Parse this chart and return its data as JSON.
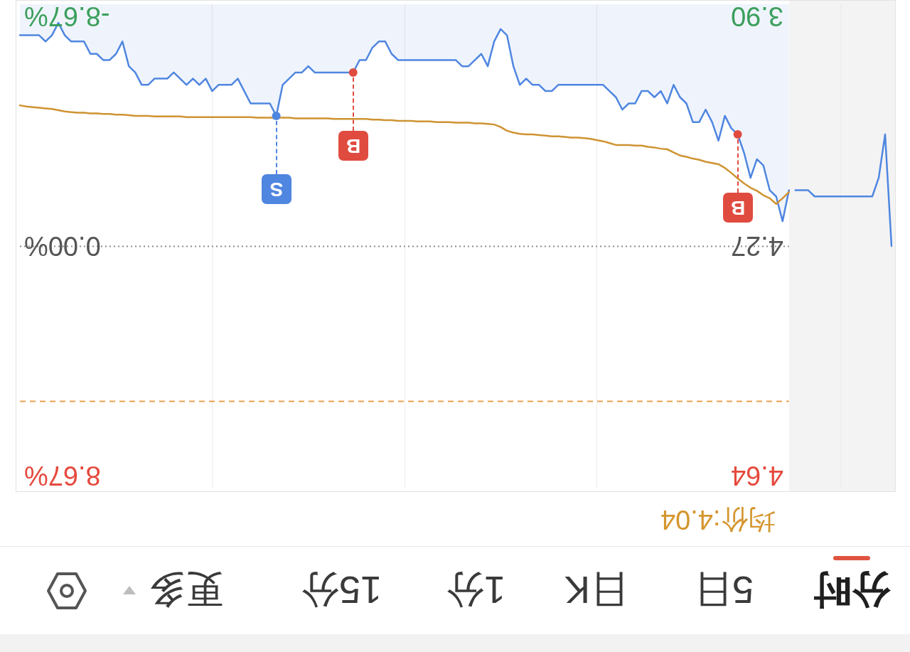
{
  "chart_data": {
    "type": "line",
    "categories": [
      null,
      null,
      null,
      null,
      null,
      null,
      null,
      null,
      null,
      null,
      null,
      null,
      null,
      null,
      null,
      null,
      null,
      null,
      null,
      null,
      null,
      null,
      null,
      null,
      null,
      null,
      null,
      null,
      null,
      null,
      null,
      null,
      null,
      null,
      null,
      null,
      null,
      null,
      null,
      null,
      null,
      null,
      null,
      null,
      null,
      null,
      null,
      null,
      null,
      null,
      null,
      null,
      null,
      null,
      null,
      null,
      null,
      null,
      null,
      null,
      null,
      null,
      null,
      null,
      null,
      null,
      null,
      null,
      null,
      null,
      null,
      null,
      null,
      null,
      null,
      null,
      null,
      null,
      null,
      null,
      null,
      null,
      null,
      null,
      null,
      null,
      null,
      null,
      null,
      null,
      null,
      null,
      null,
      null,
      null,
      null,
      null,
      null,
      null,
      null,
      null,
      null,
      null,
      null,
      null,
      null,
      null,
      null,
      null,
      null,
      null,
      null,
      null,
      null,
      null,
      null,
      null,
      null,
      null,
      null,
      null,
      null,
      null,
      null,
      null,
      null,
      null,
      null,
      null,
      null,
      null,
      null,
      null,
      null,
      null,
      null,
      null
    ],
    "ylim": [
      4.66,
      3.88
    ],
    "yticks": [
      {
        "value": 3.9,
        "label": "3.90"
      },
      4.27,
      4.64
    ],
    "y2lim": [
      9.14,
      -9.14
    ],
    "y2ticks": [
      {
        "value": -8.67,
        "label": "-8.67%"
      },
      {
        "value": 0,
        "label": "0.00%"
      },
      {
        "value": 8.67,
        "label": "8.67%"
      }
    ],
    "grid": "x",
    "tick_labels": "y",
    "ref_lines": [
      {
        "axis": "y",
        "value": 4.27,
        "color": "#8c8c8c",
        "line_style": "dotted"
      },
      {
        "axis": "y",
        "value": 4.52,
        "color": "#e9a04f",
        "line_style": "dashed"
      }
    ],
    "annotations": [
      "分时",
      "5日",
      "日K",
      "1分",
      "15分",
      "更多",
      "均价:4.04"
    ],
    "series": [
      {
        "type": "area",
        "color": "#4f86e0",
        "values": [
          3.93,
          3.93,
          3.93,
          3.93,
          3.94,
          3.93,
          3.91,
          3.93,
          3.94,
          3.94,
          3.94,
          3.96,
          3.96,
          3.97,
          3.97,
          3.96,
          3.94,
          3.98,
          3.99,
          4.01,
          4.01,
          4.0,
          4.0,
          4.0,
          3.99,
          4.0,
          4.01,
          4.0,
          4.01,
          4.0,
          4.02,
          4.01,
          4.01,
          4.01,
          4.0,
          4.02,
          4.04,
          4.04,
          4.04,
          4.04,
          4.06,
          4.01,
          4.0,
          3.99,
          3.99,
          3.98,
          3.99,
          3.99,
          3.99,
          3.99,
          3.99,
          3.99,
          3.99,
          3.97,
          3.97,
          3.95,
          3.94,
          3.94,
          3.96,
          3.97,
          3.97,
          3.97,
          3.97,
          3.97,
          3.97,
          3.97,
          3.97,
          3.97,
          3.97,
          3.98,
          3.98,
          3.97,
          3.96,
          3.98,
          3.94,
          3.92,
          3.93,
          3.98,
          4.01,
          4.0,
          4.01,
          4.01,
          4.02,
          4.02,
          4.01,
          4.01,
          4.01,
          4.01,
          4.01,
          4.01,
          4.01,
          4.01,
          4.02,
          4.03,
          4.05,
          4.04,
          4.04,
          4.02,
          4.02,
          4.03,
          4.02,
          4.04,
          4.01,
          4.03,
          4.04,
          4.07,
          4.07,
          4.05,
          4.07,
          4.1,
          4.06,
          4.08,
          4.09,
          4.12,
          4.16,
          4.13,
          4.14,
          4.18,
          4.19,
          4.23,
          4.18,
          null,
          null,
          null,
          null,
          null,
          null,
          null,
          null,
          null,
          null,
          null,
          null,
          null,
          null,
          null,
          null
        ]
      },
      {
        "type": "line",
        "color": "#4f86e0",
        "values": [
          null,
          null,
          null,
          null,
          null,
          null,
          null,
          null,
          null,
          null,
          null,
          null,
          null,
          null,
          null,
          null,
          null,
          null,
          null,
          null,
          null,
          null,
          null,
          null,
          null,
          null,
          null,
          null,
          null,
          null,
          null,
          null,
          null,
          null,
          null,
          null,
          null,
          null,
          null,
          null,
          null,
          null,
          null,
          null,
          null,
          null,
          null,
          null,
          null,
          null,
          null,
          null,
          null,
          null,
          null,
          null,
          null,
          null,
          null,
          null,
          null,
          null,
          null,
          null,
          null,
          null,
          null,
          null,
          null,
          null,
          null,
          null,
          null,
          null,
          null,
          null,
          null,
          null,
          null,
          null,
          null,
          null,
          null,
          null,
          null,
          null,
          null,
          null,
          null,
          null,
          null,
          null,
          null,
          null,
          null,
          null,
          null,
          null,
          null,
          null,
          null,
          null,
          null,
          null,
          null,
          null,
          null,
          null,
          null,
          null,
          null,
          null,
          null,
          null,
          null,
          null,
          null,
          null,
          null,
          null,
          null,
          4.18,
          4.18,
          4.18,
          4.19,
          4.19,
          4.19,
          4.19,
          4.19,
          4.19,
          4.19,
          4.19,
          4.19,
          4.19,
          4.16,
          4.09,
          4.27
        ]
      },
      {
        "type": "line",
        "color": "#cf9332",
        "values": [
          4.043,
          4.045,
          4.046,
          4.047,
          4.048,
          4.049,
          4.051,
          4.053,
          4.054,
          4.055,
          4.055,
          4.056,
          4.056,
          4.057,
          4.057,
          4.058,
          4.058,
          4.059,
          4.06,
          4.06,
          4.06,
          4.061,
          4.061,
          4.061,
          4.061,
          4.061,
          4.062,
          4.062,
          4.062,
          4.062,
          4.062,
          4.062,
          4.062,
          4.062,
          4.062,
          4.062,
          4.062,
          4.063,
          4.063,
          4.063,
          4.063,
          4.063,
          4.063,
          4.064,
          4.064,
          4.064,
          4.064,
          4.064,
          4.064,
          4.065,
          4.065,
          4.065,
          4.065,
          4.065,
          4.065,
          4.066,
          4.066,
          4.067,
          4.067,
          4.068,
          4.068,
          4.068,
          4.069,
          4.069,
          4.069,
          4.07,
          4.07,
          4.07,
          4.071,
          4.071,
          4.071,
          4.072,
          4.072,
          4.073,
          4.074,
          4.078,
          4.084,
          4.087,
          4.089,
          4.09,
          4.09,
          4.091,
          4.092,
          4.093,
          4.093,
          4.094,
          4.095,
          4.095,
          4.096,
          4.097,
          4.099,
          4.101,
          4.104,
          4.107,
          4.107,
          4.107,
          4.108,
          4.108,
          4.11,
          4.111,
          4.113,
          4.114,
          4.119,
          4.124,
          4.126,
          4.129,
          4.131,
          4.134,
          4.136,
          4.138,
          4.144,
          4.152,
          4.161,
          4.169,
          4.176,
          4.181,
          4.188,
          4.193,
          4.202,
          4.193,
          4.183,
          null,
          null,
          null,
          null,
          null,
          null,
          null,
          null,
          null,
          null,
          null,
          null,
          null,
          null,
          null,
          null
        ]
      },
      {
        "type": "scatter",
        "color": "#e04b3f",
        "marker": "circle",
        "values": [
          null,
          null,
          null,
          null,
          null,
          null,
          null,
          null,
          null,
          null,
          null,
          null,
          null,
          null,
          null,
          null,
          null,
          null,
          null,
          null,
          null,
          null,
          null,
          null,
          null,
          null,
          null,
          null,
          null,
          null,
          null,
          null,
          null,
          null,
          null,
          null,
          null,
          null,
          null,
          null,
          null,
          null,
          null,
          null,
          null,
          null,
          null,
          null,
          null,
          null,
          null,
          null,
          3.99,
          null,
          null,
          null,
          null,
          null,
          null,
          null,
          null,
          null,
          null,
          null,
          null,
          null,
          null,
          null,
          null,
          null,
          null,
          null,
          null,
          null,
          null,
          null,
          null,
          null,
          null,
          null,
          null,
          null,
          null,
          null,
          null,
          null,
          null,
          null,
          null,
          null,
          null,
          null,
          null,
          null,
          null,
          null,
          null,
          null,
          null,
          null,
          null,
          null,
          null,
          null,
          null,
          null,
          null,
          null,
          null,
          null,
          null,
          null,
          4.09,
          null,
          null,
          null,
          null,
          null,
          null,
          null,
          null,
          null,
          null,
          null,
          null,
          null,
          null,
          null,
          null,
          null,
          null,
          null,
          null,
          null,
          null,
          null,
          null
        ],
        "value_labels": [
          null,
          null,
          null,
          null,
          null,
          null,
          null,
          null,
          null,
          null,
          null,
          null,
          null,
          null,
          null,
          null,
          null,
          null,
          null,
          null,
          null,
          null,
          null,
          null,
          null,
          null,
          null,
          null,
          null,
          null,
          null,
          null,
          null,
          null,
          null,
          null,
          null,
          null,
          null,
          null,
          null,
          null,
          null,
          null,
          null,
          null,
          null,
          null,
          null,
          null,
          null,
          null,
          "B",
          null,
          null,
          null,
          null,
          null,
          null,
          null,
          null,
          null,
          null,
          null,
          null,
          null,
          null,
          null,
          null,
          null,
          null,
          null,
          null,
          null,
          null,
          null,
          null,
          null,
          null,
          null,
          null,
          null,
          null,
          null,
          null,
          null,
          null,
          null,
          null,
          null,
          null,
          null,
          null,
          null,
          null,
          null,
          null,
          null,
          null,
          null,
          null,
          null,
          null,
          null,
          null,
          null,
          null,
          null,
          null,
          null,
          null,
          null,
          "B",
          null,
          null,
          null,
          null,
          null,
          null,
          null,
          null,
          null,
          null,
          null,
          null,
          null,
          null,
          null,
          null,
          null,
          null,
          null,
          null,
          null,
          null,
          null,
          null
        ]
      },
      {
        "type": "scatter",
        "color": "#4f86e0",
        "marker": "circle",
        "values": [
          null,
          null,
          null,
          null,
          null,
          null,
          null,
          null,
          null,
          null,
          null,
          null,
          null,
          null,
          null,
          null,
          null,
          null,
          null,
          null,
          null,
          null,
          null,
          null,
          null,
          null,
          null,
          null,
          null,
          null,
          null,
          null,
          null,
          null,
          null,
          null,
          null,
          null,
          null,
          null,
          4.06,
          null,
          null,
          null,
          null,
          null,
          null,
          null,
          null,
          null,
          null,
          null,
          null,
          null,
          null,
          null,
          null,
          null,
          null,
          null,
          null,
          null,
          null,
          null,
          null,
          null,
          null,
          null,
          null,
          null,
          null,
          null,
          null,
          null,
          null,
          null,
          null,
          null,
          null,
          null,
          null,
          null,
          null,
          null,
          null,
          null,
          null,
          null,
          null,
          null,
          null,
          null,
          null,
          null,
          null,
          null,
          null,
          null,
          null,
          null,
          null,
          null,
          null,
          null,
          null,
          null,
          null,
          null,
          null,
          null,
          null,
          null,
          null,
          null,
          null,
          null,
          null,
          null,
          null,
          null,
          null,
          null,
          null,
          null,
          null,
          null,
          null,
          null,
          null,
          null,
          null,
          null,
          null,
          null,
          null,
          null,
          null
        ],
        "value_labels": [
          null,
          null,
          null,
          null,
          null,
          null,
          null,
          null,
          null,
          null,
          null,
          null,
          null,
          null,
          null,
          null,
          null,
          null,
          null,
          null,
          null,
          null,
          null,
          null,
          null,
          null,
          null,
          null,
          null,
          null,
          null,
          null,
          null,
          null,
          null,
          null,
          null,
          null,
          null,
          null,
          "S",
          null,
          null,
          null,
          null,
          null,
          null,
          null,
          null,
          null,
          null,
          null,
          null,
          null,
          null,
          null,
          null,
          null,
          null,
          null,
          null,
          null,
          null,
          null,
          null,
          null,
          null,
          null,
          null,
          null,
          null,
          null,
          null,
          null,
          null,
          null,
          null,
          null,
          null,
          null,
          null,
          null,
          null,
          null,
          null,
          null,
          null,
          null,
          null,
          null,
          null,
          null,
          null,
          null,
          null,
          null,
          null,
          null,
          null,
          null,
          null,
          null,
          null,
          null,
          null,
          null,
          null,
          null,
          null,
          null,
          null,
          null,
          null,
          null,
          null,
          null,
          null,
          null,
          null,
          null,
          null,
          null,
          null,
          null,
          null,
          null,
          null,
          null,
          null,
          null,
          null,
          null,
          null,
          null,
          null,
          null,
          null
        ]
      }
    ]
  }
}
